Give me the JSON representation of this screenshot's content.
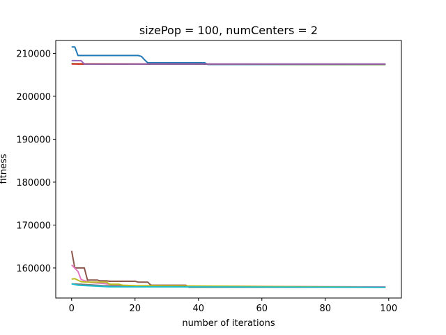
{
  "chart_data": {
    "type": "line",
    "title": "sizePop = 100, numCenters = 2",
    "xlabel": "number of iterations",
    "ylabel": "fitness",
    "xlim": [
      -5,
      104
    ],
    "ylim": [
      153000,
      213000
    ],
    "xticks": [
      0,
      20,
      40,
      60,
      80,
      100
    ],
    "yticks": [
      160000,
      170000,
      180000,
      190000,
      200000,
      210000
    ],
    "grid": false,
    "legend": "none",
    "series": [
      {
        "color": "#1f77b4",
        "points": [
          [
            0,
            211500
          ],
          [
            1,
            211500
          ],
          [
            2,
            209500
          ],
          [
            21,
            209500
          ],
          [
            22,
            209300
          ],
          [
            23,
            208500
          ],
          [
            24,
            207800
          ],
          [
            42,
            207800
          ],
          [
            43,
            207400
          ],
          [
            99,
            207400
          ]
        ]
      },
      {
        "color": "#ff7f0e",
        "points": [
          [
            0,
            207600
          ],
          [
            99,
            207400
          ]
        ]
      },
      {
        "color": "#2ca02c",
        "points": [
          [
            0,
            207600
          ],
          [
            2,
            207500
          ],
          [
            99,
            207400
          ]
        ]
      },
      {
        "color": "#d62728",
        "points": [
          [
            0,
            207500
          ],
          [
            99,
            207500
          ]
        ]
      },
      {
        "color": "#9467bd",
        "points": [
          [
            0,
            208300
          ],
          [
            3,
            208300
          ],
          [
            4,
            207500
          ],
          [
            99,
            207500
          ]
        ]
      },
      {
        "color": "#8c564b",
        "points": [
          [
            0,
            164000
          ],
          [
            1,
            160000
          ],
          [
            4,
            160000
          ],
          [
            5,
            157200
          ],
          [
            8,
            157200
          ],
          [
            9,
            157000
          ],
          [
            11,
            157000
          ],
          [
            12,
            156900
          ],
          [
            20,
            156900
          ],
          [
            21,
            156700
          ],
          [
            24,
            156700
          ],
          [
            25,
            156000
          ],
          [
            36,
            156000
          ],
          [
            37,
            155500
          ],
          [
            99,
            155500
          ]
        ]
      },
      {
        "color": "#e377c2",
        "points": [
          [
            0,
            160700
          ],
          [
            2,
            159200
          ],
          [
            3,
            157300
          ],
          [
            6,
            156600
          ],
          [
            10,
            156400
          ],
          [
            15,
            156000
          ],
          [
            20,
            155800
          ],
          [
            99,
            155600
          ]
        ]
      },
      {
        "color": "#7f7f7f",
        "points": [
          [
            0,
            156300
          ],
          [
            3,
            156200
          ],
          [
            10,
            155900
          ],
          [
            20,
            155700
          ],
          [
            99,
            155500
          ]
        ]
      },
      {
        "color": "#bcbd22",
        "points": [
          [
            0,
            157400
          ],
          [
            1,
            157500
          ],
          [
            3,
            156800
          ],
          [
            5,
            156700
          ],
          [
            11,
            156700
          ],
          [
            12,
            156200
          ],
          [
            15,
            156200
          ],
          [
            16,
            156000
          ],
          [
            20,
            155900
          ],
          [
            99,
            155500
          ]
        ]
      },
      {
        "color": "#17becf",
        "points": [
          [
            0,
            156300
          ],
          [
            2,
            156000
          ],
          [
            7,
            155800
          ],
          [
            12,
            155600
          ],
          [
            99,
            155500
          ]
        ]
      }
    ]
  }
}
